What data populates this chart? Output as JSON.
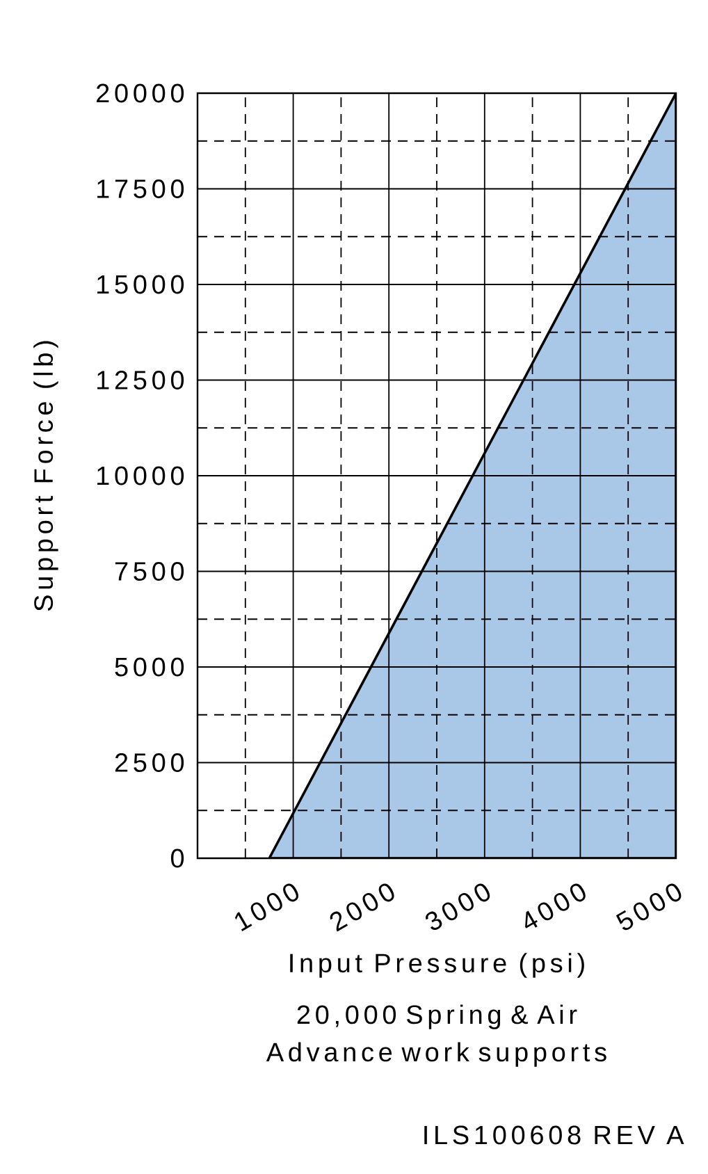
{
  "chart_data": {
    "type": "area",
    "xlabel": "Input Pressure (psi)",
    "ylabel": "Support Force (lb)",
    "annotations": [
      "20,000 Spring & Air Advance work supports",
      "ILS100608 REV A"
    ],
    "x": [
      750,
      5000
    ],
    "series": [
      {
        "values": [
          0,
          20000
        ],
        "color": "#a9c8e8"
      }
    ],
    "xlim": [
      0,
      5000
    ],
    "xticks": [
      {
        "value": 500,
        "label": null
      },
      1000,
      {
        "value": 1500,
        "label": null
      },
      2000,
      {
        "value": 2500,
        "label": null
      },
      3000,
      {
        "value": 3500,
        "label": null
      },
      4000,
      {
        "value": 4500,
        "label": null
      },
      5000
    ],
    "ylim": [
      0,
      20000
    ],
    "yticks": [
      0,
      {
        "value": 1250,
        "label": null
      },
      2500,
      {
        "value": 3750,
        "label": null
      },
      5000,
      {
        "value": 6250,
        "label": null
      },
      7500,
      {
        "value": 8750,
        "label": null
      },
      10000,
      {
        "value": 11250,
        "label": null
      },
      12500,
      {
        "value": 13750,
        "label": null
      },
      15000,
      {
        "value": 16250,
        "label": null
      },
      17500,
      {
        "value": 18750,
        "label": null
      },
      20000
    ],
    "grid": true
  }
}
